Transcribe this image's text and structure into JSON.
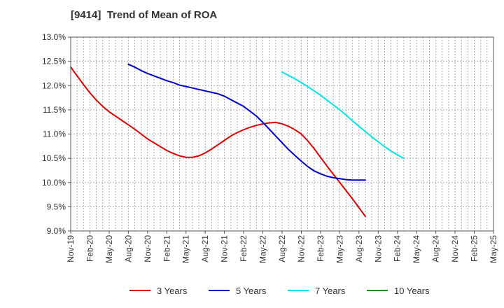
{
  "chart_data": {
    "type": "line",
    "title": "[9414]  Trend of Mean of ROA",
    "x_labels": [
      "Nov-19",
      "Feb-20",
      "May-20",
      "Aug-20",
      "Nov-20",
      "Feb-21",
      "May-21",
      "Aug-21",
      "Nov-21",
      "Feb-22",
      "May-22",
      "Aug-22",
      "Nov-22",
      "Feb-23",
      "May-23",
      "Aug-23",
      "Nov-23",
      "Feb-24",
      "May-24",
      "Aug-24",
      "Nov-24",
      "Feb-25",
      "May-25"
    ],
    "y_ticks": [
      "9.0%",
      "9.5%",
      "10.0%",
      "10.5%",
      "11.0%",
      "11.5%",
      "12.0%",
      "12.5%",
      "13.0%"
    ],
    "ylim": [
      9.0,
      13.0
    ],
    "y_unit": "%",
    "grid": true,
    "legend_position": "bottom",
    "series": [
      {
        "name": "3 Years",
        "color": "#e00000",
        "points": [
          [
            "Nov-19",
            12.38
          ],
          [
            "Dec-19",
            12.2
          ],
          [
            "Jan-20",
            12.02
          ],
          [
            "Feb-20",
            11.85
          ],
          [
            "Mar-20",
            11.7
          ],
          [
            "Apr-20",
            11.57
          ],
          [
            "May-20",
            11.46
          ],
          [
            "Jun-20",
            11.37
          ],
          [
            "Jul-20",
            11.28
          ],
          [
            "Aug-20",
            11.19
          ],
          [
            "Sep-20",
            11.1
          ],
          [
            "Oct-20",
            11.0
          ],
          [
            "Nov-20",
            10.9
          ],
          [
            "Dec-20",
            10.82
          ],
          [
            "Jan-21",
            10.74
          ],
          [
            "Feb-21",
            10.66
          ],
          [
            "Mar-21",
            10.6
          ],
          [
            "Apr-21",
            10.55
          ],
          [
            "May-21",
            10.52
          ],
          [
            "Jun-21",
            10.52
          ],
          [
            "Jul-21",
            10.55
          ],
          [
            "Aug-21",
            10.61
          ],
          [
            "Sep-21",
            10.69
          ],
          [
            "Oct-21",
            10.78
          ],
          [
            "Nov-21",
            10.87
          ],
          [
            "Dec-21",
            10.96
          ],
          [
            "Jan-22",
            11.03
          ],
          [
            "Feb-22",
            11.09
          ],
          [
            "Mar-22",
            11.14
          ],
          [
            "Apr-22",
            11.18
          ],
          [
            "May-22",
            11.21
          ],
          [
            "Jun-22",
            11.23
          ],
          [
            "Jul-22",
            11.24
          ],
          [
            "Aug-22",
            11.21
          ],
          [
            "Sep-22",
            11.16
          ],
          [
            "Oct-22",
            11.09
          ],
          [
            "Nov-22",
            11.0
          ],
          [
            "Dec-22",
            10.86
          ],
          [
            "Jan-23",
            10.7
          ],
          [
            "Feb-23",
            10.52
          ],
          [
            "Mar-23",
            10.34
          ],
          [
            "Apr-23",
            10.17
          ],
          [
            "May-23",
            10.0
          ],
          [
            "Jun-23",
            9.83
          ],
          [
            "Jul-23",
            9.66
          ],
          [
            "Aug-23",
            9.48
          ],
          [
            "Sep-23",
            9.3
          ]
        ]
      },
      {
        "name": "5 Years",
        "color": "#0000c8",
        "points": [
          [
            "Aug-20",
            12.44
          ],
          [
            "Sep-20",
            12.38
          ],
          [
            "Oct-20",
            12.31
          ],
          [
            "Nov-20",
            12.25
          ],
          [
            "Dec-20",
            12.2
          ],
          [
            "Jan-21",
            12.15
          ],
          [
            "Feb-21",
            12.1
          ],
          [
            "Mar-21",
            12.06
          ],
          [
            "Apr-21",
            12.01
          ],
          [
            "May-21",
            11.98
          ],
          [
            "Jun-21",
            11.95
          ],
          [
            "Jul-21",
            11.92
          ],
          [
            "Aug-21",
            11.89
          ],
          [
            "Sep-21",
            11.86
          ],
          [
            "Oct-21",
            11.83
          ],
          [
            "Nov-21",
            11.78
          ],
          [
            "Dec-21",
            11.71
          ],
          [
            "Jan-22",
            11.64
          ],
          [
            "Feb-22",
            11.57
          ],
          [
            "Mar-22",
            11.47
          ],
          [
            "Apr-22",
            11.37
          ],
          [
            "May-22",
            11.24
          ],
          [
            "Jun-22",
            11.1
          ],
          [
            "Jul-22",
            10.96
          ],
          [
            "Aug-22",
            10.82
          ],
          [
            "Sep-22",
            10.68
          ],
          [
            "Oct-22",
            10.56
          ],
          [
            "Nov-22",
            10.44
          ],
          [
            "Dec-22",
            10.33
          ],
          [
            "Jan-23",
            10.24
          ],
          [
            "Feb-23",
            10.18
          ],
          [
            "Mar-23",
            10.13
          ],
          [
            "Apr-23",
            10.1
          ],
          [
            "May-23",
            10.08
          ],
          [
            "Jun-23",
            10.06
          ],
          [
            "Jul-23",
            10.05
          ],
          [
            "Aug-23",
            10.05
          ],
          [
            "Sep-23",
            10.05
          ]
        ]
      },
      {
        "name": "7 Years",
        "color": "#00e5ee",
        "points": [
          [
            "Aug-22",
            12.28
          ],
          [
            "Sep-22",
            12.21
          ],
          [
            "Oct-22",
            12.14
          ],
          [
            "Nov-22",
            12.06
          ],
          [
            "Dec-22",
            11.98
          ],
          [
            "Jan-23",
            11.89
          ],
          [
            "Feb-23",
            11.8
          ],
          [
            "Mar-23",
            11.7
          ],
          [
            "Apr-23",
            11.6
          ],
          [
            "May-23",
            11.5
          ],
          [
            "Jun-23",
            11.39
          ],
          [
            "Jul-23",
            11.27
          ],
          [
            "Aug-23",
            11.16
          ],
          [
            "Sep-23",
            11.05
          ],
          [
            "Oct-23",
            10.94
          ],
          [
            "Nov-23",
            10.84
          ],
          [
            "Dec-23",
            10.74
          ],
          [
            "Jan-24",
            10.65
          ],
          [
            "Feb-24",
            10.57
          ],
          [
            "Mar-24",
            10.5
          ]
        ]
      },
      {
        "name": "10 Years",
        "color": "#228b22",
        "points": []
      }
    ]
  }
}
